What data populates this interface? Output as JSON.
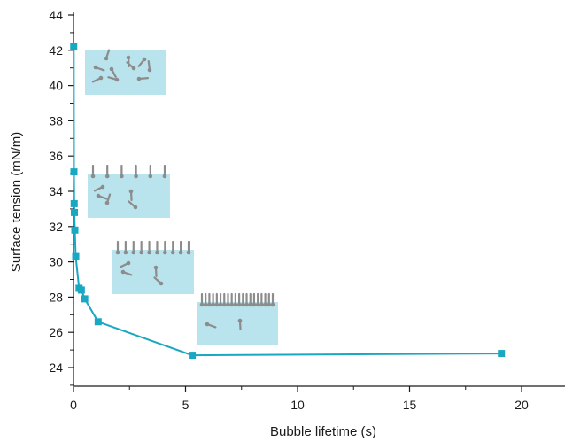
{
  "chart_data": {
    "type": "line",
    "title": "",
    "xlabel": "Bubble lifetime (s)",
    "ylabel": "Surface tension (mN/m)",
    "xlim": [
      0,
      22
    ],
    "ylim": [
      23,
      44
    ],
    "x_ticks": [
      0,
      5,
      10,
      15,
      20
    ],
    "y_ticks": [
      24,
      26,
      28,
      30,
      32,
      34,
      36,
      38,
      40,
      42,
      44
    ],
    "grid": false,
    "legend": "none",
    "colors": {
      "series": "#1aa7c2",
      "inset": "#b9e3ed",
      "molecule": "#8c8c8c"
    },
    "series": [
      {
        "x": [
          0.01,
          0.02,
          0.03,
          0.04,
          0.06,
          0.1,
          0.25,
          0.35,
          0.5,
          1.1,
          5.3,
          19.1
        ],
        "y": [
          42.2,
          35.1,
          33.3,
          32.8,
          31.8,
          30.3,
          28.5,
          28.4,
          27.9,
          26.6,
          24.7,
          24.8
        ]
      }
    ],
    "insets": [
      {
        "name": "inset-dispersed",
        "ordered_count": 0,
        "free_count": 10
      },
      {
        "name": "inset-few-adsorbed",
        "ordered_count": 6,
        "free_count": 5
      },
      {
        "name": "inset-more-adsorbed",
        "ordered_count": 10,
        "free_count": 4
      },
      {
        "name": "inset-saturated",
        "ordered_count": 20,
        "free_count": 2
      }
    ]
  }
}
